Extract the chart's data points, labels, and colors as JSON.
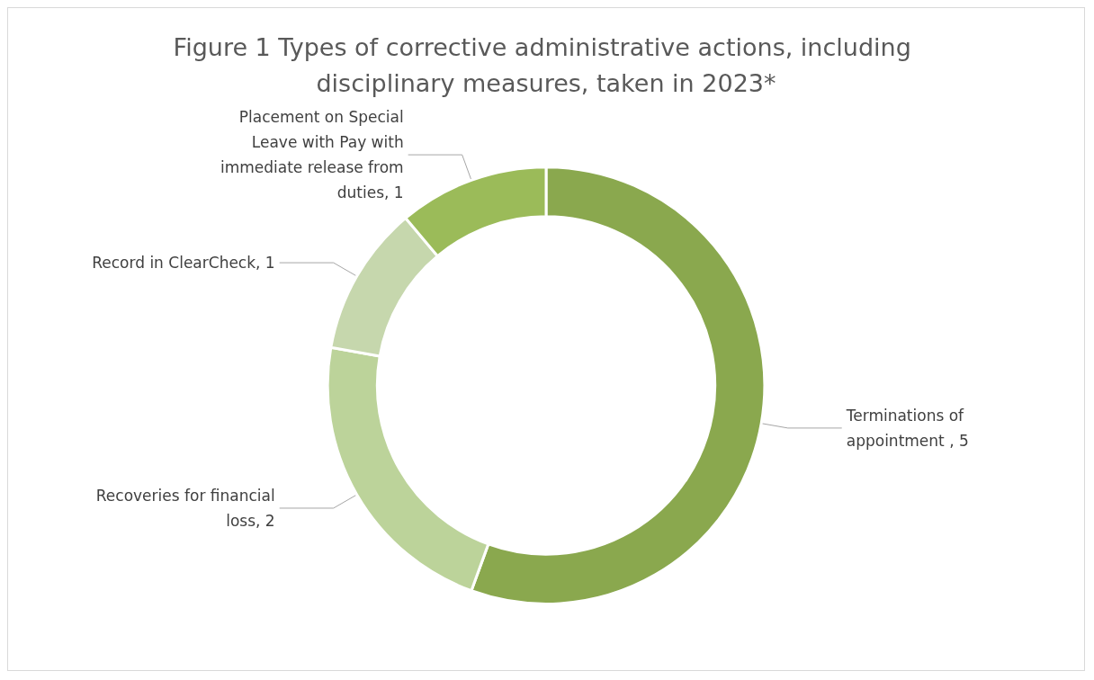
{
  "chart_data": {
    "type": "donut",
    "title": "Figure 1 Types of corrective administrative actions, including disciplinary measures, taken in 2023*",
    "categories": [
      "Terminations of appointment ",
      "Recoveries for financial loss",
      "Record in ClearCheck",
      "Placement on Special Leave with Pay with immediate release from duties"
    ],
    "values": [
      5,
      2,
      1,
      1
    ],
    "colors": [
      "#8aa84e",
      "#bcd39a",
      "#c6d7ad",
      "#9bbb59"
    ],
    "value_labels": [
      "5",
      "2",
      "1",
      "1"
    ],
    "legend": false
  }
}
